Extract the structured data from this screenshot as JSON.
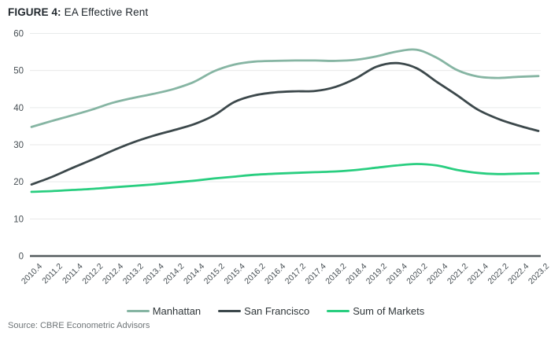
{
  "figure": {
    "title_prefix": "FIGURE 4:",
    "title_rest": "EA Effective Rent"
  },
  "source_note": "Source: CBRE Econometric Advisors",
  "colors": {
    "grid": "#e8eaea",
    "zero_axis": "#5a6163",
    "tick_text": "#474f54",
    "title_text": "#21282e",
    "legend_text": "#2e3538",
    "source_text": "#6e7477",
    "manhattan": "#86b5a3",
    "san_francisco": "#3c484b",
    "sum_of_markets": "#29ce80"
  },
  "chart_data": {
    "type": "line",
    "title": "FIGURE 4: EA Effective Rent",
    "xlabel": "",
    "ylabel": "",
    "ylim": [
      0,
      60
    ],
    "yticks": [
      0,
      10,
      20,
      30,
      40,
      50,
      60
    ],
    "grid": true,
    "legend_position": "bottom",
    "x_labels": [
      "2010.4",
      "2011.2",
      "2011.4",
      "2012.2",
      "2012.4",
      "2013.2",
      "2013.4",
      "2014.2",
      "2014.4",
      "2015.2",
      "2015.4",
      "2016.2",
      "2016.4",
      "2017.2",
      "2017.4",
      "2018.2",
      "2018.4",
      "2019.2",
      "2019.4",
      "2020.2",
      "2020.4",
      "2021.2",
      "2021.4",
      "2022.2",
      "2022.4",
      "2023.2"
    ],
    "series": [
      {
        "name": "Manhattan",
        "color": "#86b5a3",
        "values": [
          34.8,
          36.4,
          37.9,
          39.5,
          41.3,
          42.6,
          43.7,
          45.0,
          46.9,
          49.8,
          51.6,
          52.4,
          52.6,
          52.7,
          52.7,
          52.6,
          52.9,
          53.8,
          55.1,
          55.6,
          53.4,
          50.1,
          48.4,
          48.0,
          48.3,
          48.5
        ]
      },
      {
        "name": "San Francisco",
        "color": "#3c484b",
        "values": [
          19.3,
          21.3,
          23.7,
          26.0,
          28.4,
          30.6,
          32.4,
          33.9,
          35.5,
          37.9,
          41.5,
          43.3,
          44.1,
          44.4,
          44.5,
          45.6,
          47.9,
          51.0,
          52.0,
          50.6,
          46.9,
          43.3,
          39.5,
          37.0,
          35.2,
          33.7
        ]
      },
      {
        "name": "Sum of Markets",
        "color": "#29ce80",
        "values": [
          17.3,
          17.5,
          17.8,
          18.1,
          18.5,
          18.9,
          19.3,
          19.8,
          20.3,
          20.9,
          21.4,
          21.9,
          22.2,
          22.4,
          22.6,
          22.8,
          23.2,
          23.8,
          24.4,
          24.8,
          24.4,
          23.2,
          22.4,
          22.1,
          22.2,
          22.3
        ]
      }
    ]
  }
}
